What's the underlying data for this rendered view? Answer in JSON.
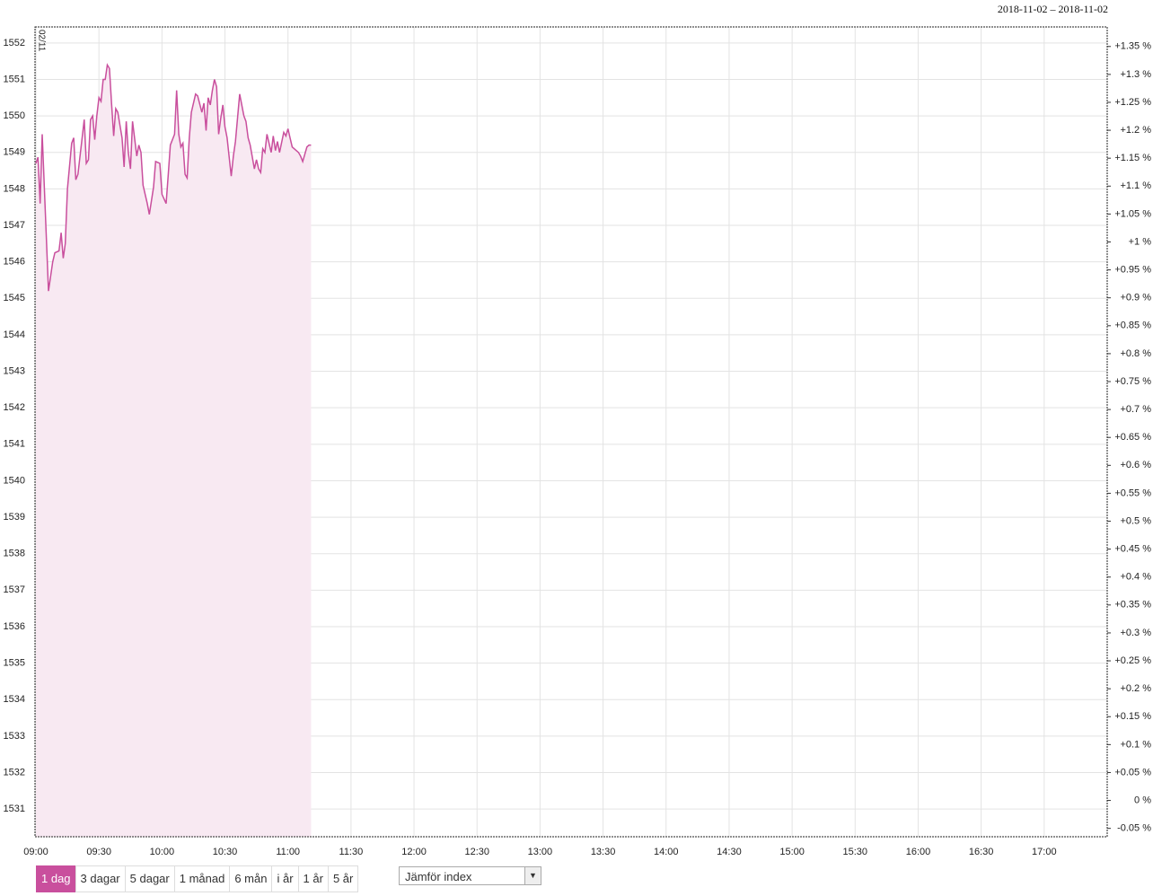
{
  "header": {
    "date_range": "2018-11-02 – 2018-11-02"
  },
  "chart_data": {
    "type": "line",
    "date_label": "02/11",
    "x": [
      "09:00",
      "09:01",
      "09:02",
      "09:03",
      "09:06",
      "09:08",
      "09:09",
      "09:11",
      "09:12",
      "09:13",
      "09:14",
      "09:15",
      "09:17",
      "09:18",
      "09:19",
      "09:20",
      "09:23",
      "09:24",
      "09:25",
      "09:26",
      "09:27",
      "09:28",
      "09:29",
      "09:30",
      "09:31",
      "09:32",
      "09:33",
      "09:34",
      "09:35",
      "09:36",
      "09:37",
      "09:38",
      "09:39",
      "09:41",
      "09:42",
      "09:43",
      "09:44",
      "09:45",
      "09:46",
      "09:48",
      "09:49",
      "09:50",
      "09:51",
      "09:53",
      "09:54",
      "09:56",
      "09:57",
      "09:59",
      "10:00",
      "10:02",
      "10:03",
      "10:04",
      "10:06",
      "10:07",
      "10:08",
      "10:09",
      "10:10",
      "10:11",
      "10:12",
      "10:13",
      "10:14",
      "10:16",
      "10:17",
      "10:19",
      "10:20",
      "10:21",
      "10:22",
      "10:23",
      "10:24",
      "10:25",
      "10:26",
      "10:27",
      "10:28",
      "10:29",
      "10:30",
      "10:31",
      "10:33",
      "10:34",
      "10:35",
      "10:37",
      "10:39",
      "10:40",
      "10:41",
      "10:42",
      "10:44",
      "10:45",
      "10:46",
      "10:47",
      "10:48",
      "10:49",
      "10:50",
      "10:52",
      "10:53",
      "10:54",
      "10:55",
      "10:56",
      "10:58",
      "10:59",
      "11:00",
      "11:01",
      "11:02",
      "11:05",
      "11:06",
      "11:07",
      "11:09",
      "11:10",
      "11:11"
    ],
    "values": [
      1548.7,
      1548.87,
      1547.6,
      1549.5,
      1545.2,
      1546,
      1546.25,
      1546.3,
      1546.8,
      1546.1,
      1546.5,
      1548,
      1549.25,
      1549.4,
      1548.25,
      1548.4,
      1549.9,
      1548.7,
      1548.8,
      1549.9,
      1550,
      1549.35,
      1550,
      1550.5,
      1550.4,
      1551,
      1551,
      1551.4,
      1551.3,
      1550.35,
      1549.45,
      1550.2,
      1550.1,
      1549.4,
      1548.6,
      1549.85,
      1549,
      1548.55,
      1549.85,
      1548.9,
      1549.2,
      1549,
      1548.1,
      1547.6,
      1547.3,
      1548.05,
      1548.75,
      1548.7,
      1547.85,
      1547.6,
      1548.4,
      1549.2,
      1549.5,
      1550.7,
      1549.5,
      1549.15,
      1549.25,
      1548.4,
      1548.3,
      1549.4,
      1550.1,
      1550.6,
      1550.55,
      1550.1,
      1550.35,
      1549.6,
      1550.5,
      1550.3,
      1550.7,
      1551,
      1550.8,
      1549.5,
      1549.95,
      1550.3,
      1549.7,
      1549.4,
      1548.35,
      1548.9,
      1549.3,
      1550.6,
      1550,
      1549.85,
      1549.4,
      1549.2,
      1548.55,
      1548.8,
      1548.55,
      1548.45,
      1549.1,
      1549,
      1549.5,
      1549,
      1549.45,
      1549.05,
      1549.3,
      1549,
      1549.55,
      1549.45,
      1549.65,
      1549.4,
      1549.15,
      1549,
      1548.9,
      1548.75,
      1549.15,
      1549.2,
      1549.2
    ],
    "color": "#c94f9d",
    "area_color": "#f8e9f2",
    "xlim": [
      "09:00",
      "17:30"
    ],
    "xticks": [
      "09:00",
      "09:30",
      "10:00",
      "10:30",
      "11:00",
      "11:30",
      "12:00",
      "12:30",
      "13:00",
      "13:30",
      "14:00",
      "14:30",
      "15:00",
      "15:30",
      "16:00",
      "16:30",
      "17:00"
    ],
    "ylim": [
      1530.24,
      1552.44
    ],
    "yticks": [
      1531,
      1532,
      1533,
      1534,
      1535,
      1536,
      1537,
      1538,
      1539,
      1540,
      1541,
      1542,
      1543,
      1544,
      1545,
      1546,
      1547,
      1548,
      1549,
      1550,
      1551,
      1552
    ],
    "y2lim": [
      -0.065,
      1.385
    ],
    "y2ticks": [
      {
        "value": -0.05,
        "label": "-0.05 %"
      },
      {
        "value": 0,
        "label": "0 %"
      },
      {
        "value": 0.05,
        "label": "+0.05 %"
      },
      {
        "value": 0.1,
        "label": "+0.1 %"
      },
      {
        "value": 0.15,
        "label": "+0.15 %"
      },
      {
        "value": 0.2,
        "label": "+0.2 %"
      },
      {
        "value": 0.25,
        "label": "+0.25 %"
      },
      {
        "value": 0.3,
        "label": "+0.3 %"
      },
      {
        "value": 0.35,
        "label": "+0.35 %"
      },
      {
        "value": 0.4,
        "label": "+0.4 %"
      },
      {
        "value": 0.45,
        "label": "+0.45 %"
      },
      {
        "value": 0.5,
        "label": "+0.5 %"
      },
      {
        "value": 0.55,
        "label": "+0.55 %"
      },
      {
        "value": 0.6,
        "label": "+0.6 %"
      },
      {
        "value": 0.65,
        "label": "+0.65 %"
      },
      {
        "value": 0.7,
        "label": "+0.7 %"
      },
      {
        "value": 0.75,
        "label": "+0.75 %"
      },
      {
        "value": 0.8,
        "label": "+0.8 %"
      },
      {
        "value": 0.85,
        "label": "+0.85 %"
      },
      {
        "value": 0.9,
        "label": "+0.9 %"
      },
      {
        "value": 0.95,
        "label": "+0.95 %"
      },
      {
        "value": 1,
        "label": "+1 %"
      },
      {
        "value": 1.05,
        "label": "+1.05 %"
      },
      {
        "value": 1.1,
        "label": "+1.1 %"
      },
      {
        "value": 1.15,
        "label": "+1.15 %"
      },
      {
        "value": 1.2,
        "label": "+1.2 %"
      },
      {
        "value": 1.25,
        "label": "+1.25 %"
      },
      {
        "value": 1.3,
        "label": "+1.3 %"
      },
      {
        "value": 1.35,
        "label": "+1.35 %"
      }
    ],
    "grid": true
  },
  "controls": {
    "periods": [
      "1 dag",
      "3 dagar",
      "5 dagar",
      "1 månad",
      "6 mån",
      "i år",
      "1 år",
      "5 år"
    ],
    "selected": 0,
    "compare": "Jämför index"
  }
}
